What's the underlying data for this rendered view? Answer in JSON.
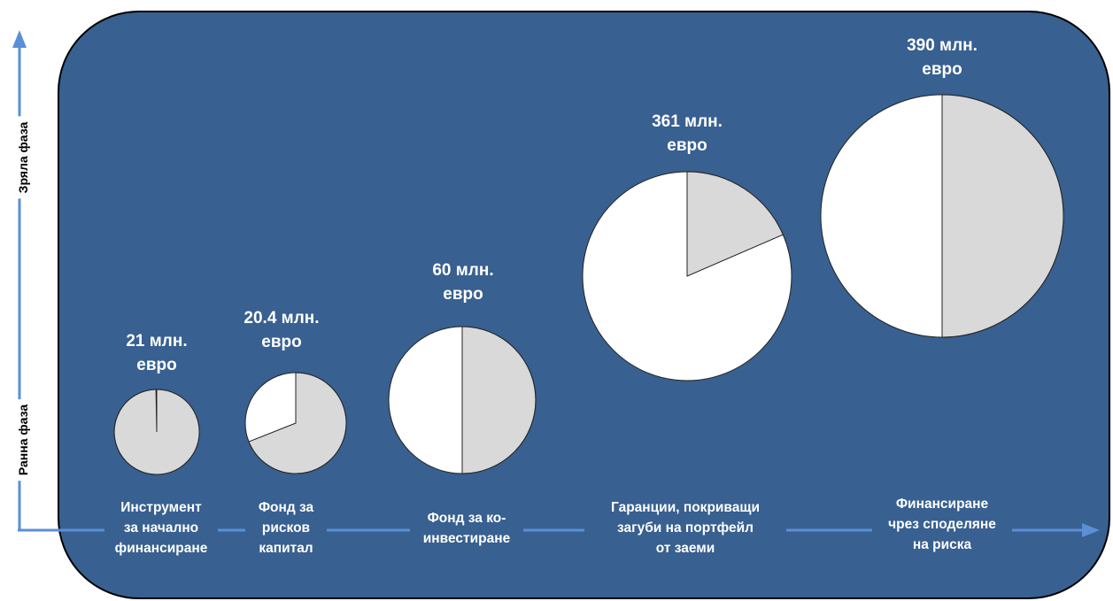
{
  "axis": {
    "y_low_label": "Ранна фаза",
    "y_high_label": "Зряла фаза"
  },
  "colors": {
    "panel": "#386090",
    "arrow": "#5b8fd6",
    "slice_white": "#ffffff",
    "slice_gray": "#d9d9d9"
  },
  "instruments": [
    {
      "amount": "21 млн.\nевро",
      "label": "Инструмент\nза начално\nфинансиране",
      "gray_share": 0.997
    },
    {
      "amount": "20.4 млн.\nевро",
      "label": "Фонд за\nрисков\nкапитал",
      "gray_share": 0.69
    },
    {
      "amount": "60 млн.\nевро",
      "label": "Фонд за ко-\nинвестиране",
      "gray_share": 0.5
    },
    {
      "amount": "361 млн.\nевро",
      "label": "Гаранции, покриващи\nзагуби на портфейл\nот заеми",
      "gray_share": 0.185
    },
    {
      "amount": "390 млн.\nевро",
      "label": "Финансиране\nчрез споделяне\nна риска",
      "gray_share": 0.5
    }
  ]
}
